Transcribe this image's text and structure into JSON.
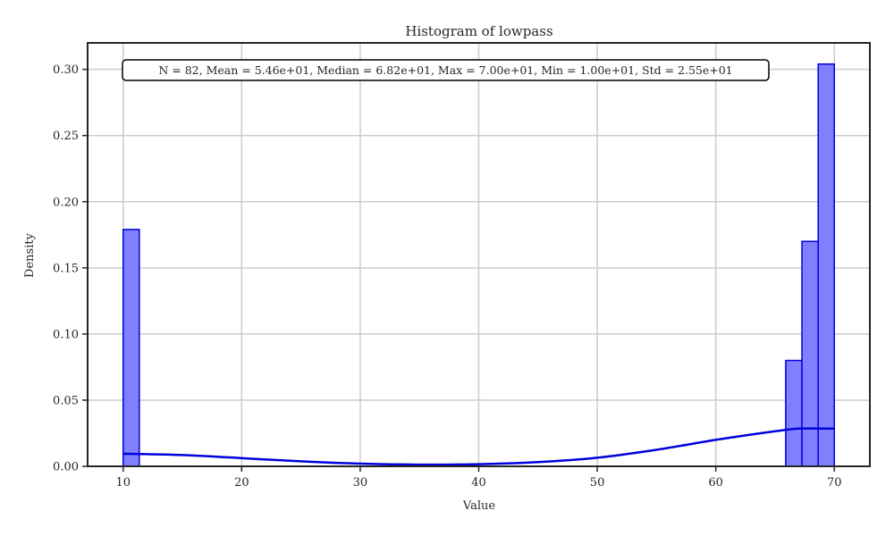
{
  "chart_data": {
    "type": "bar",
    "subtype": "histogram",
    "title": "Histogram of lowpass",
    "xlabel": "Value",
    "ylabel": "Density",
    "xlim": [
      7,
      73
    ],
    "ylim": [
      0,
      0.32
    ],
    "xticks": [
      10,
      20,
      30,
      40,
      50,
      60,
      70
    ],
    "yticks": [
      0.0,
      0.05,
      0.1,
      0.15,
      0.2,
      0.25,
      0.3
    ],
    "ytick_labels": [
      "0.00",
      "0.05",
      "0.10",
      "0.15",
      "0.20",
      "0.25",
      "0.30"
    ],
    "grid": true,
    "stats_text": "N = 82, Mean = 5.46e+01, Median = 6.82e+01, Max = 7.00e+01, Min = 1.00e+01, Std = 2.55e+01",
    "colors": {
      "bar_fill": "#8080ff",
      "bar_edge": "#0000dd",
      "kde_line": "#0000dd",
      "grid": "#cccccc",
      "axes": "#262626"
    },
    "bins": [
      {
        "start": 10.0,
        "end": 11.36,
        "density": 0.179
      },
      {
        "start": 65.9,
        "end": 67.27,
        "density": 0.08
      },
      {
        "start": 67.27,
        "end": 68.64,
        "density": 0.17
      },
      {
        "start": 68.64,
        "end": 70.0,
        "density": 0.304
      }
    ],
    "kde": {
      "x": [
        10,
        15,
        20,
        25,
        30,
        35,
        40,
        45,
        50,
        55,
        60,
        65,
        67,
        70
      ],
      "y": [
        0.0095,
        0.0085,
        0.0062,
        0.0038,
        0.002,
        0.0013,
        0.0016,
        0.0032,
        0.0065,
        0.0125,
        0.02,
        0.0265,
        0.0285,
        0.0285
      ]
    }
  }
}
